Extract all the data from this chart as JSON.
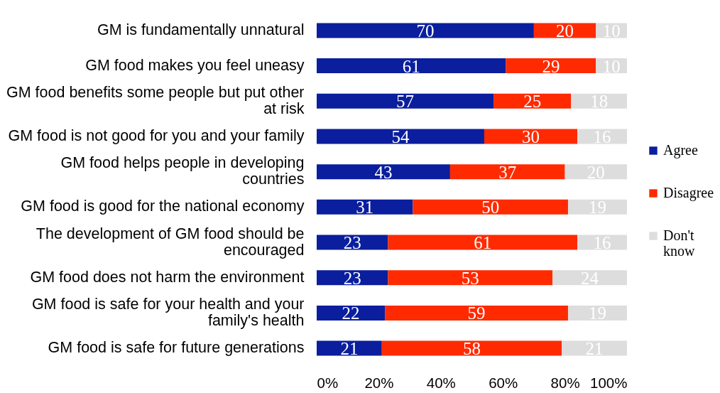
{
  "chart_data": {
    "type": "bar",
    "orientation": "horizontal",
    "stacked": true,
    "categories": [
      "GM is fundamentally unnatural",
      "GM food makes you feel uneasy",
      "GM food benefits some people but put other at risk",
      "GM food is not good for you and your family",
      "GM food helps people in developing countries",
      "GM food is good for the national economy",
      "The development of GM food should be encouraged",
      "GM food does not harm the environment",
      "GM food is safe for your health and your family's health",
      "GM food is safe for future generations"
    ],
    "series": [
      {
        "name": "Agree",
        "color": "#0a1e9e",
        "values": [
          70,
          61,
          57,
          54,
          43,
          31,
          23,
          23,
          22,
          21
        ]
      },
      {
        "name": "Disagree",
        "color": "#ff2a00",
        "values": [
          20,
          29,
          25,
          30,
          37,
          50,
          61,
          53,
          59,
          58
        ]
      },
      {
        "name": "Don't know",
        "color": "#dddddd",
        "values": [
          10,
          10,
          18,
          16,
          20,
          19,
          16,
          24,
          19,
          21
        ]
      }
    ],
    "xlim": [
      0,
      100
    ],
    "xticks": [
      {
        "value": 0,
        "label": "0%"
      },
      {
        "value": 20,
        "label": "20%"
      },
      {
        "value": 40,
        "label": "40%"
      },
      {
        "value": 60,
        "label": "60%"
      },
      {
        "value": 80,
        "label": "80%"
      },
      {
        "value": 100,
        "label": "100%"
      }
    ],
    "data_labels": true,
    "legend": "right"
  }
}
